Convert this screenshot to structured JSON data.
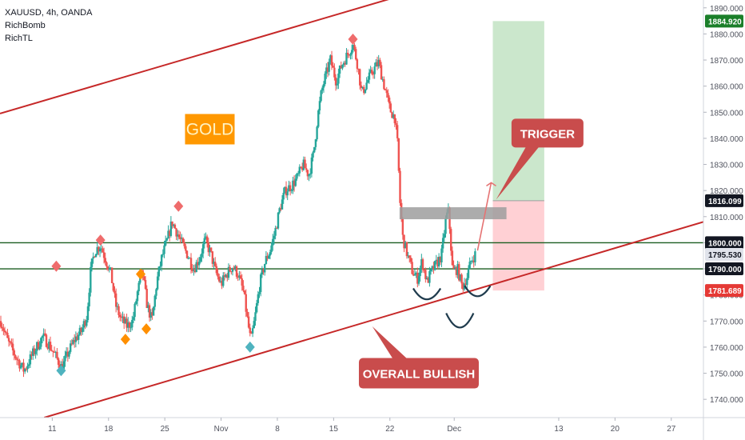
{
  "legend": {
    "symbol_line": "XAUUSD, 4h, OANDA",
    "indicator_1": "RichBomb",
    "indicator_2": "RichTL"
  },
  "colors": {
    "bull_candle": "#26a69a",
    "bear_candle": "#ef5350",
    "channel_line": "#c62828",
    "level_line": "#1b5e20",
    "target_zone": "#c8e6c9",
    "stop_zone": "#ffcdd2",
    "trigger_zone": "#9e9e9e",
    "callout_bg": "#c94c4c",
    "gold_label_bg": "#ff9800",
    "price_tag_green": "#1b7f2a",
    "price_tag_red": "#e53935",
    "price_tag_dark": "#131722",
    "price_tag_grey": "#e0e3eb"
  },
  "chart_data": {
    "type": "candlestick",
    "symbol": "XAUUSD",
    "timeframe": "4h",
    "source": "OANDA",
    "ylim": [
      1733,
      1893
    ],
    "y_ticks": [
      1740,
      1750,
      1760,
      1770,
      1780,
      1790,
      1800,
      1810,
      1820,
      1830,
      1840,
      1850,
      1860,
      1870,
      1880,
      1890
    ],
    "x_ticks": [
      "11",
      "18",
      "25",
      "Nov",
      "8",
      "15",
      "22",
      "Dec",
      "13",
      "20",
      "27"
    ],
    "x_tick_values": [
      11,
      18,
      25,
      32,
      39,
      46,
      53,
      61,
      74,
      81,
      88
    ],
    "xlim": [
      4.5,
      92
    ],
    "close_path": [
      [
        4.6,
        1770
      ],
      [
        5.5,
        1762
      ],
      [
        6.5,
        1756
      ],
      [
        7.5,
        1751
      ],
      [
        8.5,
        1757
      ],
      [
        9.8,
        1764
      ],
      [
        10.6,
        1761
      ],
      [
        11.5,
        1756
      ],
      [
        12.2,
        1752
      ],
      [
        13.0,
        1758
      ],
      [
        13.8,
        1763
      ],
      [
        14.6,
        1766
      ],
      [
        15.3,
        1772
      ],
      [
        15.8,
        1790
      ],
      [
        16.3,
        1797
      ],
      [
        17.0,
        1799
      ],
      [
        17.6,
        1794
      ],
      [
        18.3,
        1788
      ],
      [
        18.9,
        1776
      ],
      [
        19.5,
        1771
      ],
      [
        20.3,
        1768
      ],
      [
        21.0,
        1770
      ],
      [
        21.6,
        1781
      ],
      [
        22.2,
        1789
      ],
      [
        22.8,
        1776
      ],
      [
        23.4,
        1770
      ],
      [
        24.0,
        1785
      ],
      [
        24.6,
        1794
      ],
      [
        25.3,
        1801
      ],
      [
        25.9,
        1808
      ],
      [
        26.5,
        1804
      ],
      [
        27.2,
        1799
      ],
      [
        27.9,
        1795
      ],
      [
        28.6,
        1790
      ],
      [
        29.3,
        1794
      ],
      [
        30.0,
        1801
      ],
      [
        30.7,
        1796
      ],
      [
        31.3,
        1789
      ],
      [
        32.0,
        1784
      ],
      [
        32.7,
        1788
      ],
      [
        33.4,
        1791
      ],
      [
        34.1,
        1788
      ],
      [
        34.8,
        1781
      ],
      [
        35.3,
        1770
      ],
      [
        35.7,
        1762
      ],
      [
        36.2,
        1771
      ],
      [
        36.8,
        1784
      ],
      [
        37.5,
        1793
      ],
      [
        38.1,
        1797
      ],
      [
        38.7,
        1804
      ],
      [
        39.3,
        1813
      ],
      [
        40.0,
        1820
      ],
      [
        40.8,
        1822
      ],
      [
        41.5,
        1825
      ],
      [
        42.2,
        1830
      ],
      [
        42.9,
        1826
      ],
      [
        43.5,
        1834
      ],
      [
        44.0,
        1848
      ],
      [
        44.5,
        1858
      ],
      [
        45.0,
        1864
      ],
      [
        45.6,
        1870
      ],
      [
        46.3,
        1862
      ],
      [
        47.0,
        1868
      ],
      [
        47.7,
        1872
      ],
      [
        48.4,
        1876
      ],
      [
        49.0,
        1868
      ],
      [
        49.5,
        1857
      ],
      [
        50.2,
        1862
      ],
      [
        50.9,
        1866
      ],
      [
        51.6,
        1869
      ],
      [
        52.3,
        1860
      ],
      [
        53.0,
        1851
      ],
      [
        53.6,
        1848
      ],
      [
        54.0,
        1836
      ],
      [
        54.2,
        1818
      ],
      [
        54.6,
        1802
      ],
      [
        55.2,
        1795
      ],
      [
        55.8,
        1789
      ],
      [
        56.4,
        1786
      ],
      [
        57.0,
        1793
      ],
      [
        57.6,
        1785
      ],
      [
        58.2,
        1789
      ],
      [
        58.8,
        1792
      ],
      [
        59.4,
        1795
      ],
      [
        60.0,
        1810
      ],
      [
        60.3,
        1812
      ],
      [
        60.8,
        1789
      ],
      [
        61.4,
        1790
      ],
      [
        62.0,
        1783
      ],
      [
        62.6,
        1787
      ],
      [
        63.1,
        1793
      ],
      [
        63.7,
        1796
      ]
    ],
    "horizontal_levels": [
      {
        "price": 1800.0,
        "tag": "1800.000"
      },
      {
        "price": 1790.0,
        "tag": "1790.000"
      }
    ],
    "price_tags": [
      {
        "price": 1884.92,
        "text": "1884.920",
        "kind": "green"
      },
      {
        "price": 1816.099,
        "text": "1816.099",
        "kind": "dark"
      },
      {
        "price": 1800.0,
        "text": "1800.000",
        "kind": "dark"
      },
      {
        "price": 1795.53,
        "text": "1795.530",
        "kind": "grey"
      },
      {
        "price": 1790.0,
        "text": "1790.000",
        "kind": "dark"
      },
      {
        "price": 1781.689,
        "text": "1781.689",
        "kind": "red"
      }
    ],
    "channel": {
      "upper": [
        [
          4.5,
          1849.5
        ],
        [
          57.5,
          1897.5
        ]
      ],
      "lower": [
        [
          10.0,
          1733
        ],
        [
          92.0,
          1808
        ]
      ]
    },
    "trade_box": {
      "x_start": 65.8,
      "x_end": 72.2,
      "entry": 1816.099,
      "target": 1884.92,
      "stop": 1781.689
    },
    "trigger_zone": {
      "x_start": 54.2,
      "x_end": 67.5,
      "high": 1813.6,
      "low": 1809.0
    },
    "projection_arrow": [
      [
        63.9,
        1797
      ],
      [
        65.6,
        1823
      ]
    ],
    "pattern_arcs": [
      {
        "center": [
          57.6,
          1782.5
        ],
        "width": 3.4,
        "depth": 4.2
      },
      {
        "center": [
          61.7,
          1773.0
        ],
        "width": 3.4,
        "depth": 5.5
      },
      {
        "center": [
          63.9,
          1783.5
        ],
        "width": 3.2,
        "depth": 4.0
      }
    ],
    "signals": [
      {
        "type": "sell",
        "x": 11.5,
        "y": 1791
      },
      {
        "type": "buy",
        "x": 12.1,
        "y": 1751
      },
      {
        "type": "sell",
        "x": 17.0,
        "y": 1801
      },
      {
        "type": "buy_orange",
        "x": 20.1,
        "y": 1763
      },
      {
        "type": "buy_orange",
        "x": 22.0,
        "y": 1788
      },
      {
        "type": "buy_orange",
        "x": 22.7,
        "y": 1767
      },
      {
        "type": "sell",
        "x": 26.7,
        "y": 1814
      },
      {
        "type": "buy",
        "x": 35.6,
        "y": 1760
      },
      {
        "type": "sell",
        "x": 48.4,
        "y": 1878
      }
    ],
    "annotations": {
      "gold_label": "GOLD",
      "trigger_label": "TRIGGER",
      "overall_label": "OVERALL BULLISH"
    }
  }
}
